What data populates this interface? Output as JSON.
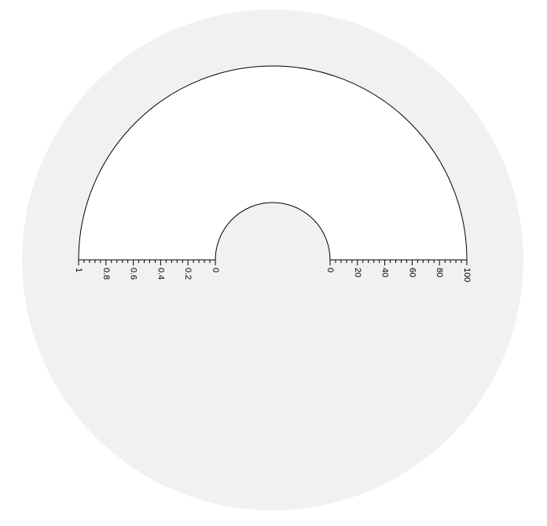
{
  "chart_data": {
    "type": "polar",
    "title": "",
    "colors": {
      "background_disc": "#f1f1f1",
      "plot_area": "#ffffff",
      "axis": "#000000"
    },
    "theta_range_degrees": [
      0,
      180
    ],
    "grid": false,
    "series": [],
    "axes": [
      {
        "side": "left",
        "range": [
          1,
          0
        ],
        "tick_labels": [
          "1",
          "0.8",
          "0.6",
          "0.4",
          "0.2",
          "0"
        ],
        "tick_values": [
          1,
          0.8,
          0.6,
          0.4,
          0.2,
          0
        ],
        "minor_ticks_per_major": 5
      },
      {
        "side": "right",
        "range": [
          0,
          100
        ],
        "tick_labels": [
          "0",
          "20",
          "40",
          "60",
          "80",
          "100"
        ],
        "tick_values": [
          0,
          20,
          40,
          60,
          80,
          100
        ],
        "minor_ticks_per_major": 5
      }
    ]
  }
}
